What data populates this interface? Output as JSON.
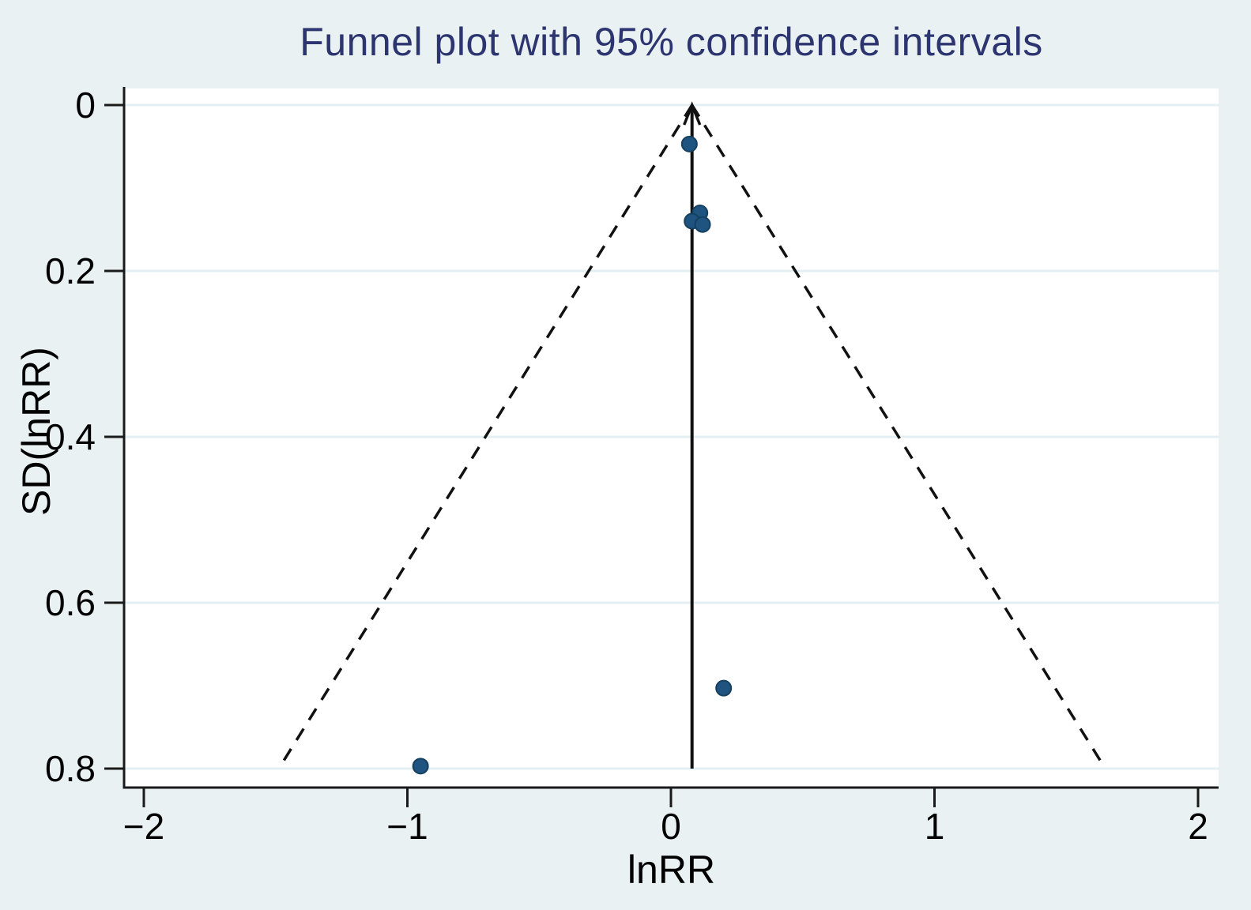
{
  "chart_data": {
    "type": "scatter",
    "subtype": "funnel-plot",
    "title": "Funnel plot with 95% confidence intervals",
    "xlabel": "lnRR",
    "ylabel": "SD(lnRR)",
    "x_ticks": [
      -2,
      -1,
      0,
      1,
      2
    ],
    "x_tick_labels": [
      "−2",
      "−1",
      "0",
      "1",
      "2"
    ],
    "y_ticks": [
      0,
      0.2,
      0.4,
      0.6,
      0.8
    ],
    "y_tick_labels": [
      "0",
      "0.2",
      "0.4",
      "0.6",
      "0.8"
    ],
    "xlim": [
      -2.08,
      2.08
    ],
    "ylim": [
      -0.02,
      0.82
    ],
    "y_axis_inverted": true,
    "grid": "horizontal",
    "legend": "none",
    "points": [
      {
        "x": 0.07,
        "y": 0.047
      },
      {
        "x": 0.11,
        "y": 0.13
      },
      {
        "x": 0.08,
        "y": 0.14
      },
      {
        "x": 0.12,
        "y": 0.144
      },
      {
        "x": 0.2,
        "y": 0.703
      },
      {
        "x": -0.95,
        "y": 0.797
      }
    ],
    "funnel": {
      "center": 0.08,
      "z": 1.96,
      "sd_min": 0,
      "sd_max": 0.8,
      "left_line_to_x": -1.488,
      "right_line_to_x": 1.648
    }
  },
  "colors": {
    "background": "#E9F1F2",
    "plot_background": "#FFFFFF",
    "title": "#2D3570",
    "axis": "#1A1A1A",
    "tick_label": "#000000",
    "gridline": "#E4EFF4",
    "marker_fill": "#1F5380",
    "marker_stroke": "#16405F",
    "funnel_line": "#111111"
  }
}
